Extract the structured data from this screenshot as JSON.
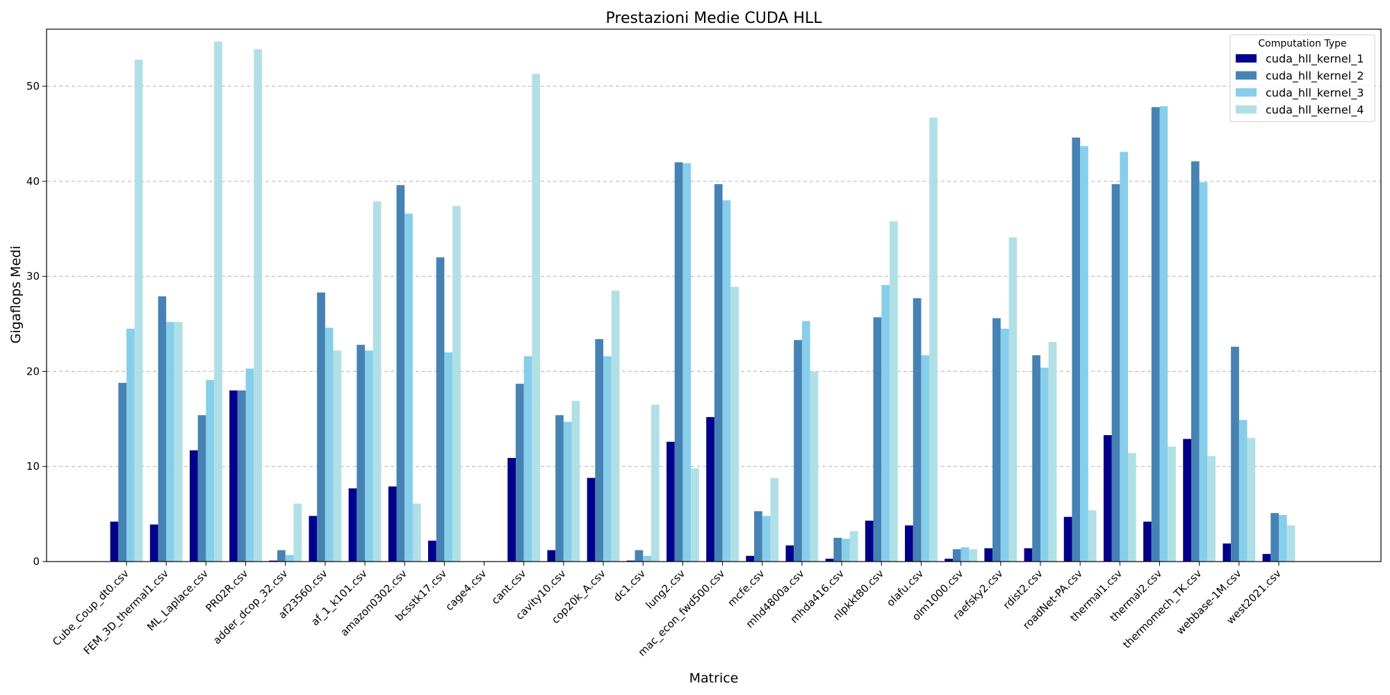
{
  "chart_data": {
    "type": "bar",
    "title": "Prestazioni Medie CUDA HLL",
    "xlabel": "Matrice",
    "ylabel": "Gigaflops Medi",
    "ylim": [
      0,
      56
    ],
    "yticks": [
      0,
      10,
      20,
      30,
      40,
      50
    ],
    "grid": "horizontal dashed",
    "legend": {
      "title": "Computation Type",
      "placement": "top-right"
    },
    "categories": [
      "Cube_Coup_dt0.csv",
      "FEM_3D_thermal1.csv",
      "ML_Laplace.csv",
      "PR02R.csv",
      "adder_dcop_32.csv",
      "af23560.csv",
      "af_1_k101.csv",
      "amazon0302.csv",
      "bcsstk17.csv",
      "cage4.csv",
      "cant.csv",
      "cavity10.csv",
      "cop20k_A.csv",
      "dc1.csv",
      "lung2.csv",
      "mac_econ_fwd500.csv",
      "mcfe.csv",
      "mhd4800a.csv",
      "mhda416.csv",
      "nlpkkt80.csv",
      "olafu.csv",
      "olm1000.csv",
      "raefsky2.csv",
      "rdist2.csv",
      "roadNet-PA.csv",
      "thermal1.csv",
      "thermal2.csv",
      "thermomech_TK.csv",
      "webbase-1M.csv",
      "west2021.csv"
    ],
    "series": [
      {
        "name": "cuda_hll_kernel_1",
        "color": "#00008b",
        "values": [
          4.2,
          3.9,
          11.7,
          18.0,
          0.1,
          4.8,
          7.7,
          7.9,
          2.2,
          0.0,
          10.9,
          1.2,
          8.8,
          0.1,
          12.6,
          15.2,
          0.6,
          1.7,
          0.3,
          4.3,
          3.8,
          0.3,
          1.4,
          1.4,
          4.7,
          13.3,
          4.2,
          12.9,
          1.9,
          0.8
        ]
      },
      {
        "name": "cuda_hll_kernel_2",
        "color": "#4682b4",
        "values": [
          18.8,
          27.9,
          15.4,
          18.0,
          1.2,
          28.3,
          22.8,
          39.6,
          32.0,
          0.0,
          18.7,
          15.4,
          23.4,
          1.2,
          42.0,
          39.7,
          5.3,
          23.3,
          2.5,
          25.7,
          27.7,
          1.3,
          25.6,
          21.7,
          44.6,
          39.7,
          47.8,
          42.1,
          22.6,
          5.1
        ]
      },
      {
        "name": "cuda_hll_kernel_3",
        "color": "#87ceeb",
        "values": [
          24.5,
          25.2,
          19.1,
          20.3,
          0.7,
          24.6,
          22.2,
          36.6,
          22.0,
          0.0,
          21.6,
          14.7,
          21.6,
          0.6,
          41.9,
          38.0,
          4.8,
          25.3,
          2.4,
          29.1,
          21.7,
          1.5,
          24.5,
          20.4,
          43.7,
          43.1,
          47.9,
          39.9,
          14.9,
          4.9
        ]
      },
      {
        "name": "cuda_hll_kernel_4",
        "color": "#b0e0e6",
        "values": [
          52.8,
          25.2,
          54.7,
          53.9,
          6.1,
          22.2,
          37.9,
          6.1,
          37.4,
          0.0,
          51.3,
          16.9,
          28.5,
          16.5,
          9.8,
          28.9,
          8.8,
          20.0,
          3.2,
          35.8,
          46.7,
          1.3,
          34.1,
          23.1,
          5.4,
          11.4,
          12.1,
          11.1,
          13.0,
          3.8
        ]
      }
    ]
  }
}
